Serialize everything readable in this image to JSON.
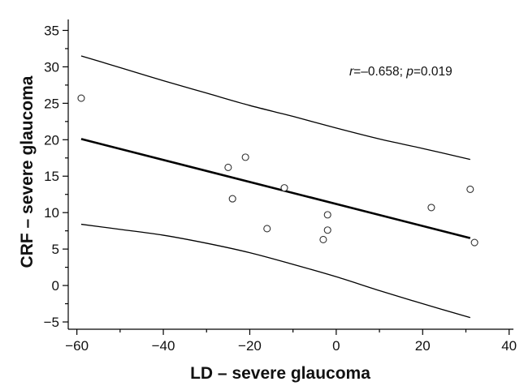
{
  "chart_data": {
    "type": "scatter",
    "title": "",
    "xlabel": "LD – severe glaucoma",
    "ylabel": "CRF – severe glaucoma",
    "xlim": [
      -62,
      41
    ],
    "ylim": [
      -6,
      36.5
    ],
    "x_ticks": [
      -60,
      -40,
      -20,
      0,
      20,
      40
    ],
    "x_tick_labels": [
      "−60",
      "−40",
      "−20",
      "0",
      "20",
      "40"
    ],
    "y_ticks": [
      -5,
      0,
      5,
      10,
      15,
      20,
      25,
      30,
      35
    ],
    "y_tick_labels": [
      "−5",
      "0",
      "5",
      "10",
      "15",
      "20",
      "25",
      "30",
      "35"
    ],
    "grid": false,
    "points": [
      {
        "x": -59,
        "y": 25.7
      },
      {
        "x": -25,
        "y": 16.2
      },
      {
        "x": -21,
        "y": 17.6
      },
      {
        "x": -24,
        "y": 11.9
      },
      {
        "x": -12,
        "y": 13.4
      },
      {
        "x": -16,
        "y": 7.8
      },
      {
        "x": -2,
        "y": 9.7
      },
      {
        "x": -2,
        "y": 7.6
      },
      {
        "x": -3,
        "y": 6.3
      },
      {
        "x": 22,
        "y": 10.7
      },
      {
        "x": 31,
        "y": 13.2
      },
      {
        "x": 32,
        "y": 5.9
      }
    ],
    "regression_line": {
      "x": [
        -59,
        31
      ],
      "y": [
        20.1,
        6.5
      ]
    },
    "confidence_band_upper": {
      "x": [
        -59,
        -50,
        -40,
        -30,
        -20,
        -10,
        0,
        10,
        20,
        31
      ],
      "y": [
        31.5,
        29.9,
        28.1,
        26.4,
        24.7,
        23.2,
        21.6,
        20.1,
        18.8,
        17.3
      ]
    },
    "confidence_band_lower": {
      "x": [
        -59,
        -50,
        -40,
        -30,
        -20,
        -10,
        0,
        10,
        20,
        31
      ],
      "y": [
        8.4,
        7.7,
        6.9,
        5.8,
        4.5,
        2.9,
        1.2,
        -0.7,
        -2.5,
        -4.4
      ]
    },
    "annotation": {
      "parts": [
        {
          "text": "r",
          "italic": true
        },
        {
          "text": "=–0.658; ",
          "italic": false
        },
        {
          "text": "p",
          "italic": true
        },
        {
          "text": "=0.019",
          "italic": false
        }
      ]
    }
  }
}
